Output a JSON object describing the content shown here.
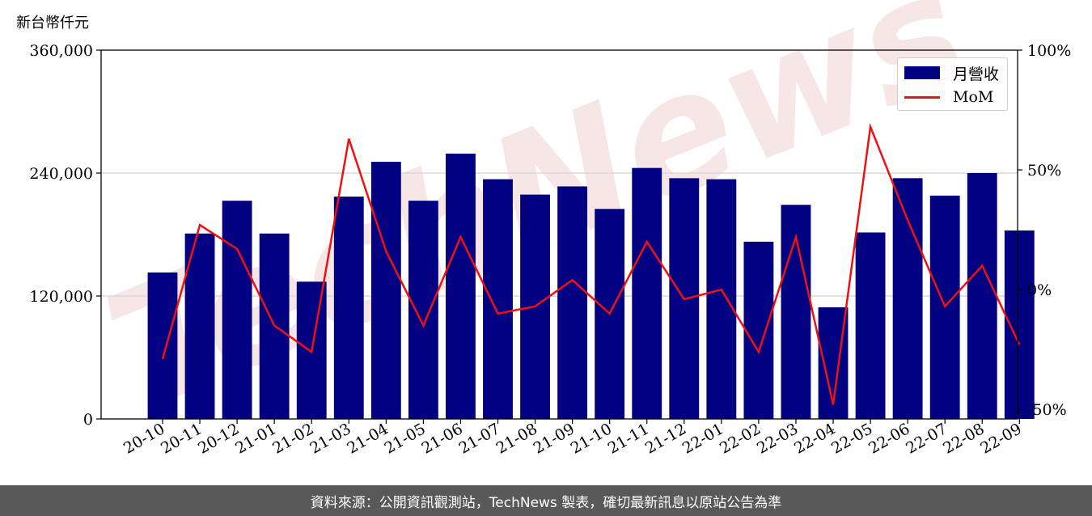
{
  "unit_label": "新台幣仟元",
  "footer_text": "資料來源：公開資訊觀測站，TechNews 製表，確切最新訊息以原站公告為準",
  "watermark": "TechNews",
  "colors": {
    "bar": "#000080",
    "line": "#ee1111",
    "grid": "#d9d9d9",
    "watermark": "#f3d6d6"
  },
  "chart_data": {
    "type": "bar",
    "categories": [
      "20-10",
      "20-11",
      "20-12",
      "21-01",
      "21-02",
      "21-03",
      "21-04",
      "21-05",
      "21-06",
      "21-07",
      "21-08",
      "21-09",
      "21-10",
      "21-11",
      "21-12",
      "22-01",
      "22-02",
      "22-03",
      "22-04",
      "22-05",
      "22-06",
      "22-07",
      "22-08",
      "22-09"
    ],
    "series": [
      {
        "name": "月營收",
        "type": "bar",
        "axis": "left",
        "values": [
          143000,
          181000,
          213000,
          181000,
          134000,
          217000,
          251000,
          213000,
          259000,
          234000,
          219000,
          227000,
          205000,
          245000,
          235000,
          234000,
          173000,
          209000,
          109000,
          182000,
          235000,
          218000,
          240000,
          184000
        ]
      },
      {
        "name": "MoM",
        "type": "line",
        "axis": "right",
        "values": [
          -29,
          27,
          17,
          -15,
          -26,
          63,
          16,
          -15,
          22,
          -10,
          -7,
          4,
          -10,
          20,
          -4,
          0,
          -26,
          22,
          -48,
          68,
          29,
          -7,
          10,
          -23
        ]
      }
    ],
    "y_left": {
      "ylim": [
        0,
        360000
      ],
      "ticks": [
        0,
        120000,
        240000,
        360000
      ],
      "tick_labels": [
        "0",
        "120,000",
        "240,000",
        "360,000"
      ]
    },
    "y_right": {
      "ylim": [
        -54,
        100
      ],
      "ticks": [
        -50,
        0,
        50,
        100
      ],
      "tick_labels": [
        "-50%",
        "0%",
        "50%",
        "100%"
      ]
    },
    "grid": "horizontal",
    "legend": "top-right"
  }
}
